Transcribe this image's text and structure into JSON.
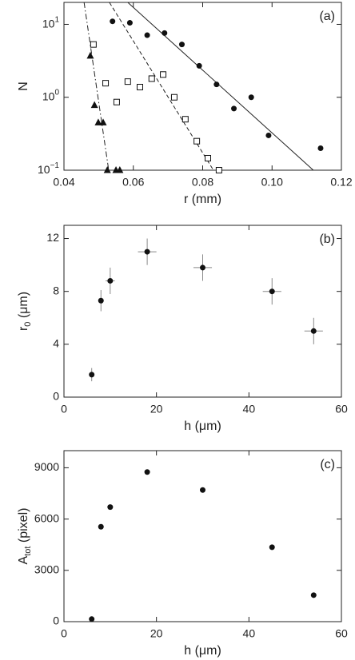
{
  "chart_data": [
    {
      "type": "scatter",
      "annotation": "(a)",
      "x_label": "r (mm)",
      "y_label": {
        "text": "N"
      },
      "log_y": true,
      "xlim": [
        0.04,
        0.12
      ],
      "ylim": [
        0.1,
        20
      ],
      "xticks": [
        0.04,
        0.06,
        {
          "value": 0.08,
          "label": "0.08"
        },
        {
          "value": 0.1,
          "label": "0.10"
        },
        {
          "value": 0.12,
          "label": "0.12"
        }
      ],
      "yticks": [
        {
          "value": 0.1,
          "label": "10",
          "exponent": "−1"
        },
        {
          "value": 1,
          "label": "10",
          "exponent": "0"
        },
        {
          "value": 10,
          "label": "10",
          "exponent": "1"
        }
      ],
      "series": [
        {
          "marker": "circle",
          "color": "#111",
          "x": [
            0.054,
            0.059,
            0.064,
            0.069,
            0.074,
            0.079,
            0.084,
            0.089,
            0.094,
            0.099,
            0.114
          ],
          "values": [
            11,
            10.5,
            7.1,
            7.6,
            5.3,
            2.7,
            1.5,
            0.7,
            1.0,
            0.3,
            0.2
          ]
        },
        {
          "marker": "square",
          "color": "#111",
          "x": [
            0.0485,
            0.052,
            0.0552,
            0.0584,
            0.0619,
            0.0653,
            0.0686,
            0.0718,
            0.075,
            0.0783,
            0.0815,
            0.0847
          ],
          "values": [
            5.3,
            1.56,
            0.86,
            1.64,
            1.38,
            1.8,
            2.05,
            1.0,
            0.5,
            0.25,
            0.146,
            0.1
          ]
        },
        {
          "marker": "triangle",
          "color": "#111",
          "x": [
            0.0476,
            0.0488,
            0.0499,
            0.0513,
            0.0525,
            0.055,
            0.0561
          ],
          "values": [
            3.7,
            0.78,
            0.45,
            0.45,
            0.1,
            0.1,
            0.1
          ]
        }
      ],
      "fit_lines": [
        {
          "dash": "solid",
          "x": [
            0.0584,
            0.1119
          ],
          "values": [
            20,
            0.1
          ]
        },
        {
          "dash": "dashed",
          "x": [
            0.0531,
            0.0831
          ],
          "values": [
            20,
            0.1
          ]
        },
        {
          "dash": "dashdot",
          "x": [
            0.0458,
            0.0529
          ],
          "values": [
            20,
            0.1
          ]
        }
      ]
    },
    {
      "type": "scatter",
      "annotation": "(b)",
      "x_label": "h (μm)",
      "y_label": {
        "text": "r",
        "sub": "0",
        "unit": " (μm)"
      },
      "xlim": [
        0,
        60
      ],
      "ylim": [
        0,
        13
      ],
      "xticks": [
        0,
        20,
        40,
        60
      ],
      "yticks": [
        0,
        4,
        8,
        12
      ],
      "series": [
        {
          "marker": "circle",
          "color": "#111",
          "x": [
            6,
            8,
            10,
            18,
            30,
            45,
            54
          ],
          "values": [
            1.7,
            7.3,
            8.8,
            11,
            9.8,
            8,
            5
          ],
          "yerr": [
            0.5,
            0.8,
            1,
            1,
            1,
            1,
            1
          ],
          "xerr": [
            0,
            0.5,
            1,
            2,
            2,
            2,
            2
          ]
        }
      ]
    },
    {
      "type": "scatter",
      "annotation": "(c)",
      "x_label": "h (μm)",
      "y_label": {
        "text": "A",
        "sub": "tot",
        "unit": " (pixel)"
      },
      "xlim": [
        0,
        60
      ],
      "ylim": [
        0,
        10000
      ],
      "xticks": [
        0,
        20,
        40,
        60
      ],
      "yticks": [
        0,
        3000,
        6000,
        9000
      ],
      "series": [
        {
          "marker": "circle",
          "color": "#111",
          "x": [
            6,
            8,
            10,
            18,
            30,
            45,
            54
          ],
          "values": [
            150,
            5550,
            6700,
            8750,
            7700,
            4350,
            1550
          ]
        }
      ]
    }
  ]
}
